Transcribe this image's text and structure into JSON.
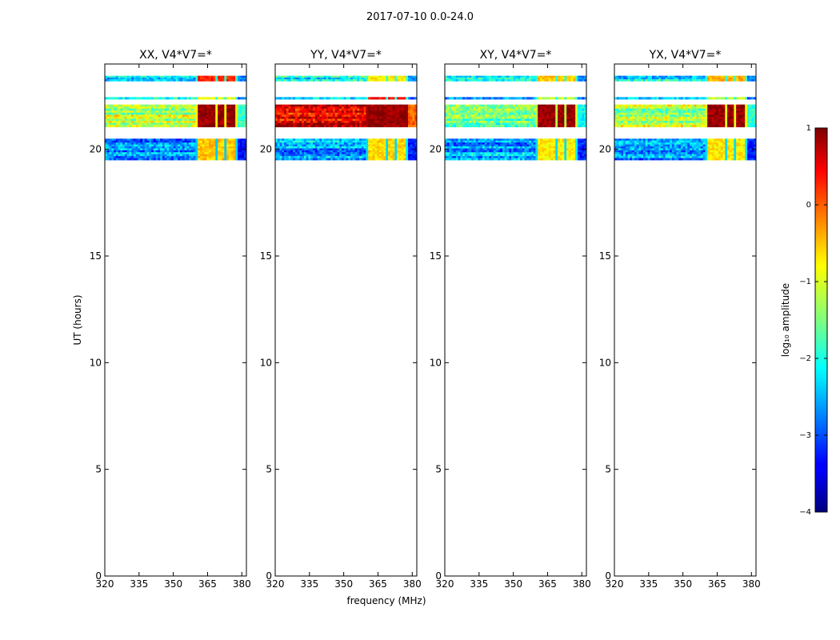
{
  "figure_title": "2017-07-10 0.0-24.0",
  "colorbar": {
    "label": "log₁₀ amplitude",
    "ticks": [
      "1",
      "0",
      "−1",
      "−2",
      "−3",
      "−4"
    ],
    "min": -4,
    "max": 1,
    "colormap": "jet"
  },
  "chart_data": [
    {
      "type": "heatmap",
      "title": "XX, V4*V7=*",
      "xlabel": "",
      "ylabel": "UT (hours)",
      "xlim": [
        320,
        382
      ],
      "ylim": [
        0,
        24
      ],
      "xticks": [
        "320",
        "335",
        "350",
        "365",
        "380"
      ],
      "yticks": [
        "0",
        "5",
        "10",
        "15",
        "20"
      ],
      "value_units": "log10 amplitude",
      "bands": [
        {
          "ut": [
            23.2,
            23.45
          ],
          "base": -2.2,
          "rfi": 0.2
        },
        {
          "ut": [
            22.35,
            22.45
          ],
          "base": -2.3,
          "rfi": -1.0
        },
        {
          "ut": [
            21.05,
            22.1
          ],
          "base": -1.2,
          "rfi": 0.9
        },
        {
          "ut": [
            19.5,
            20.5
          ],
          "base": -2.7,
          "rfi": -0.6
        }
      ]
    },
    {
      "type": "heatmap",
      "title": "YY, V4*V7=*",
      "xlabel": "frequency (MHz)",
      "ylabel": "",
      "xlim": [
        320,
        382
      ],
      "ylim": [
        0,
        24
      ],
      "xticks": [
        "320",
        "335",
        "350",
        "365",
        "380"
      ],
      "yticks": [
        "0",
        "5",
        "10",
        "15",
        "20"
      ],
      "value_units": "log10 amplitude",
      "bands": [
        {
          "ut": [
            23.2,
            23.45
          ],
          "base": -2.1,
          "rfi": -0.8
        },
        {
          "ut": [
            22.35,
            22.45
          ],
          "base": -2.3,
          "rfi": 0.3
        },
        {
          "ut": [
            21.05,
            22.1
          ],
          "base": 0.5,
          "rfi": 0.9
        },
        {
          "ut": [
            19.5,
            20.5
          ],
          "base": -2.6,
          "rfi": -0.7
        }
      ]
    },
    {
      "type": "heatmap",
      "title": "XY, V4*V7=*",
      "xlabel": "",
      "ylabel": "",
      "xlim": [
        320,
        382
      ],
      "ylim": [
        0,
        24
      ],
      "xticks": [
        "320",
        "335",
        "350",
        "365",
        "380"
      ],
      "yticks": [
        "0",
        "5",
        "10",
        "15",
        "20"
      ],
      "value_units": "log10 amplitude",
      "bands": [
        {
          "ut": [
            23.2,
            23.45
          ],
          "base": -2.2,
          "rfi": -0.6
        },
        {
          "ut": [
            22.35,
            22.45
          ],
          "base": -2.3,
          "rfi": -1.2
        },
        {
          "ut": [
            21.05,
            22.1
          ],
          "base": -1.5,
          "rfi": 0.9
        },
        {
          "ut": [
            19.5,
            20.5
          ],
          "base": -2.6,
          "rfi": -0.8
        }
      ]
    },
    {
      "type": "heatmap",
      "title": "YX, V4*V7=*",
      "xlabel": "",
      "ylabel": "",
      "xlim": [
        320,
        382
      ],
      "ylim": [
        0,
        24
      ],
      "xticks": [
        "320",
        "335",
        "350",
        "365",
        "380"
      ],
      "yticks": [
        "0",
        "5",
        "10",
        "15",
        "20"
      ],
      "value_units": "log10 amplitude",
      "bands": [
        {
          "ut": [
            23.2,
            23.45
          ],
          "base": -2.2,
          "rfi": -0.5
        },
        {
          "ut": [
            22.35,
            22.45
          ],
          "base": -2.3,
          "rfi": -1.2
        },
        {
          "ut": [
            21.05,
            22.1
          ],
          "base": -1.3,
          "rfi": 0.9
        },
        {
          "ut": [
            19.5,
            20.5
          ],
          "base": -2.6,
          "rfi": -0.8
        }
      ]
    }
  ]
}
